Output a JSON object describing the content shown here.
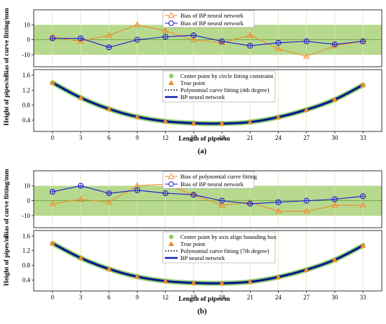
{
  "colors": {
    "band": "#b7d98e",
    "orange": "#ef8a2a",
    "blue": "#1414d6",
    "dark_blue": "#0b1fb0",
    "green_points": "#8fcf6a",
    "grid": "#d8e6b8",
    "zero_line": "#5a9a2c"
  },
  "chart_data": [
    {
      "id": "a",
      "type": "line",
      "caption": "(a)",
      "top": {
        "ylabel": "Bias of curve fitting/mm",
        "yticks": [
          10,
          0,
          -10
        ],
        "ylim": [
          -18,
          20
        ],
        "band": [
          -10,
          10
        ],
        "legend": [
          "Bias of BP neural network",
          "Bias of BP neural network"
        ],
        "x": [
          0,
          3,
          6,
          9,
          12,
          15,
          18,
          21,
          24,
          27,
          30,
          33
        ],
        "series": [
          {
            "name": "Bias of BP neural network",
            "color": "orange",
            "marker": "triangle",
            "values": [
              2,
              -1,
              3,
              10,
              6,
              0,
              -2,
              3,
              -6,
              -11,
              -4,
              -1
            ]
          },
          {
            "name": "Bias of BP neural network",
            "color": "blue",
            "marker": "circle",
            "values": [
              1,
              1,
              -5,
              0,
              2,
              3,
              -1,
              -4,
              -2,
              -1,
              -3,
              -1
            ]
          }
        ]
      },
      "bottom": {
        "ylabel": "Height of pipes/m",
        "xlabel": "Length of pipes/m",
        "yticks": [
          1.6,
          1.2,
          0.8,
          0.4
        ],
        "ylim": [
          0.1,
          1.75
        ],
        "xticks": [
          0,
          3,
          6,
          9,
          12,
          15,
          18,
          21,
          24,
          27,
          30,
          33
        ],
        "legend": [
          "Center point by circle fitting constraint",
          "True point",
          "Polynomial curve fitting (4th degree)",
          "BP neural network"
        ],
        "x": [
          0,
          3,
          6,
          9,
          12,
          15,
          18,
          21,
          24,
          27,
          30,
          33
        ],
        "y": [
          1.4,
          1.0,
          0.7,
          0.49,
          0.37,
          0.32,
          0.31,
          0.35,
          0.48,
          0.68,
          0.95,
          1.34
        ]
      }
    },
    {
      "id": "b",
      "type": "line",
      "caption": "(b)",
      "top": {
        "ylabel": "Bias of curve fitting/mm",
        "yticks": [
          10,
          0,
          -10
        ],
        "ylim": [
          -18,
          20
        ],
        "band": [
          -10,
          10
        ],
        "legend": [
          "Bias of polynomial curve fitting",
          "Bias of BP neural network"
        ],
        "x": [
          0,
          3,
          6,
          9,
          12,
          15,
          18,
          21,
          24,
          27,
          30,
          33
        ],
        "series": [
          {
            "name": "Bias of polynomial curve fitting",
            "color": "orange",
            "marker": "triangle",
            "values": [
              -2,
              1,
              -1,
              10,
              11,
              4,
              -3,
              -1,
              -7,
              -7,
              -3,
              -3
            ]
          },
          {
            "name": "Bias of BP neural network",
            "color": "blue",
            "marker": "circle",
            "values": [
              6,
              10,
              5,
              7,
              5,
              4,
              0,
              -2,
              -1,
              0,
              1,
              3
            ]
          }
        ]
      },
      "bottom": {
        "ylabel": "Height of pipes/m",
        "xlabel": "Length of pipes/m",
        "yticks": [
          1.6,
          1.2,
          0.8,
          0.4
        ],
        "ylim": [
          0.1,
          1.75
        ],
        "xticks": [
          0,
          3,
          6,
          9,
          12,
          15,
          18,
          21,
          24,
          27,
          30,
          33
        ],
        "legend": [
          "Center point by axis align bounding box",
          "True point",
          "Polynomial curve fitting (7th degree)",
          "BP neural network"
        ],
        "x": [
          0,
          3,
          6,
          9,
          12,
          15,
          18,
          21,
          24,
          27,
          30,
          33
        ],
        "y": [
          1.4,
          1.0,
          0.7,
          0.49,
          0.37,
          0.32,
          0.31,
          0.35,
          0.48,
          0.68,
          0.95,
          1.34
        ]
      }
    }
  ]
}
